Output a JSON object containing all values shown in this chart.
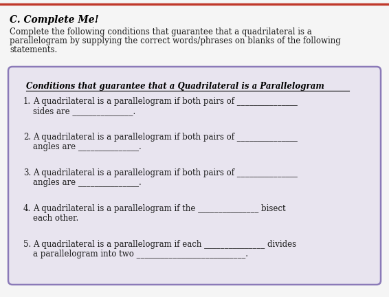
{
  "title": "C. Complete Me!",
  "intro_lines": [
    "Complete the following conditions that guarantee that a quadrilateral is a",
    "parallelogram by supplying the correct words/phrases on blanks of the following",
    "statements."
  ],
  "box_title": "Conditions that guarantee that a Quadrilateral is a Parallelogram",
  "items": [
    {
      "num": "1.",
      "line1": "A quadrilateral is a parallelogram if both pairs of _______________",
      "line2": "sides are _______________."
    },
    {
      "num": "2.",
      "line1": "A quadrilateral is a parallelogram if both pairs of _______________",
      "line2": "angles are _______________."
    },
    {
      "num": "3.",
      "line1": "A quadrilateral is a parallelogram if both pairs of _______________",
      "line2": "angles are _______________."
    },
    {
      "num": "4.",
      "line1": "A quadrilateral is a parallelogram if the _______________ bisect",
      "line2": "each other."
    },
    {
      "num": "5.",
      "line1": "A quadrilateral is a parallelogram if each _______________ divides",
      "line2": "a parallelogram into two ___________________________."
    }
  ],
  "box_bg_color": "#e8e4ef",
  "box_border_color": "#8b7ab8",
  "text_color": "#1a1a1a",
  "title_color": "#000000",
  "page_bg": "#f5f5f5",
  "top_line_color": "#c0392b",
  "font_size_title": 10,
  "font_size_intro": 8.5,
  "font_size_box_title": 8.5,
  "font_size_items": 8.5
}
